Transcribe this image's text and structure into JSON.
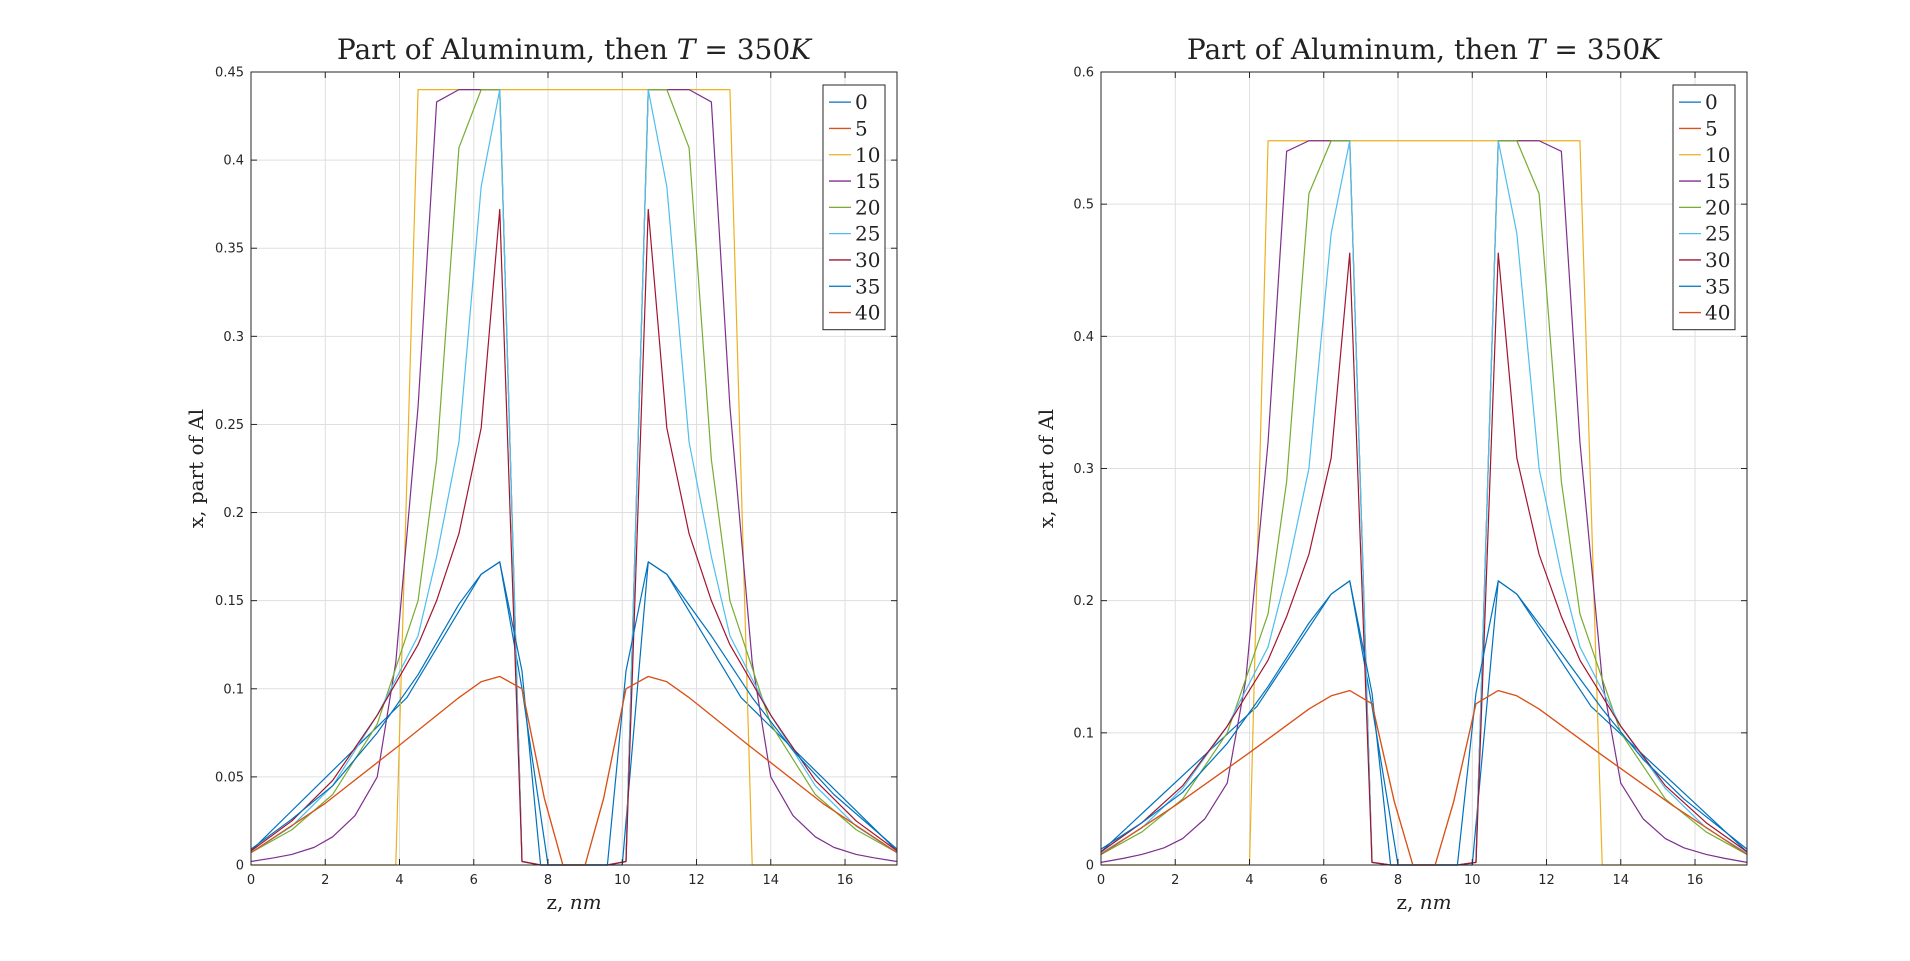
{
  "chart_data": [
    {
      "type": "line",
      "title": "Part of Aluminum, then T = 350K",
      "title_parts": {
        "text": "Part of Aluminum, then ",
        "math_T": "T",
        "math_eq": " = 350",
        "math_K": "K"
      },
      "xlabel": "z, nm",
      "xlabel_parts": {
        "text": "z, ",
        "math": "nm"
      },
      "ylabel": "x, part of Al",
      "xlim": [
        0,
        17.4
      ],
      "ylim": [
        0,
        0.45
      ],
      "xticks": [
        0,
        2,
        4,
        6,
        8,
        10,
        12,
        14,
        16
      ],
      "yticks": [
        0,
        0.05,
        0.1,
        0.15,
        0.2,
        0.25,
        0.3,
        0.35,
        0.4,
        0.45
      ],
      "ytick_labels": [
        "0",
        "0.05",
        "0.1",
        "0.15",
        "0.2",
        "0.25",
        "0.3",
        "0.35",
        "0.4",
        "0.45"
      ],
      "grid": true,
      "legend_position": "top-right",
      "series": [
        {
          "name": "0",
          "color": "#0072BD",
          "x": [
            0,
            4.2,
            6.2,
            6.7,
            7.3,
            8.0,
            10.0,
            10.7,
            11.2,
            13.2,
            17.4
          ],
          "y": [
            0.008,
            0.095,
            0.165,
            0.172,
            0.1,
            0,
            0,
            0.172,
            0.165,
            0.095,
            0.008
          ]
        },
        {
          "name": "5",
          "color": "#D95319",
          "x": [
            0,
            2.0,
            4.0,
            5.6,
            6.2,
            6.7,
            7.3,
            7.9,
            8.4,
            9.0,
            9.5,
            10.1,
            10.7,
            11.2,
            11.8,
            13.4,
            15.4,
            17.4
          ],
          "y": [
            0.007,
            0.035,
            0.068,
            0.095,
            0.104,
            0.107,
            0.1,
            0.038,
            0,
            0,
            0.038,
            0.1,
            0.107,
            0.104,
            0.095,
            0.068,
            0.035,
            0.007
          ]
        },
        {
          "name": "10",
          "color": "#EDB120",
          "x": [
            0,
            3.9,
            4.5,
            12.9,
            13.5,
            17.4
          ],
          "y": [
            0,
            0,
            0.44,
            0.44,
            0,
            0
          ]
        },
        {
          "name": "15",
          "color": "#7E2F8E",
          "x": [
            0,
            0.6,
            1.1,
            1.7,
            2.2,
            2.8,
            3.4,
            3.9,
            4.5,
            5.0,
            5.6,
            6.2,
            6.7,
            7.3,
            7.8,
            9.6,
            10.1,
            10.7,
            11.2,
            11.8,
            12.4,
            12.9,
            13.5,
            14.0,
            14.6,
            15.2,
            15.7,
            16.3,
            16.8,
            17.4
          ],
          "y": [
            0.002,
            0.004,
            0.006,
            0.01,
            0.016,
            0.028,
            0.05,
            0.115,
            0.26,
            0.433,
            0.44,
            0.44,
            0.44,
            0.002,
            0,
            0,
            0.002,
            0.44,
            0.44,
            0.44,
            0.433,
            0.26,
            0.115,
            0.05,
            0.028,
            0.016,
            0.01,
            0.006,
            0.004,
            0.002
          ]
        },
        {
          "name": "20",
          "color": "#77AC30",
          "x": [
            0,
            1.1,
            2.2,
            3.4,
            4.5,
            5.0,
            5.6,
            6.2,
            6.7,
            7.3,
            7.8,
            9.6,
            10.1,
            10.7,
            11.2,
            11.8,
            12.4,
            12.9,
            14.0,
            15.2,
            16.3,
            17.4
          ],
          "y": [
            0.007,
            0.02,
            0.04,
            0.08,
            0.15,
            0.23,
            0.407,
            0.44,
            0.44,
            0.002,
            0,
            0,
            0.002,
            0.44,
            0.44,
            0.407,
            0.23,
            0.15,
            0.08,
            0.04,
            0.02,
            0.007
          ]
        },
        {
          "name": "25",
          "color": "#4DBEEE",
          "x": [
            0,
            1.1,
            2.2,
            3.4,
            4.5,
            5.0,
            5.6,
            6.2,
            6.7,
            7.3,
            7.8,
            9.6,
            10.1,
            10.7,
            11.2,
            11.8,
            12.4,
            12.9,
            14.0,
            15.2,
            16.3,
            17.4
          ],
          "y": [
            0.007,
            0.022,
            0.045,
            0.085,
            0.13,
            0.175,
            0.24,
            0.385,
            0.44,
            0.002,
            0,
            0,
            0.002,
            0.44,
            0.385,
            0.24,
            0.175,
            0.13,
            0.085,
            0.045,
            0.022,
            0.007
          ]
        },
        {
          "name": "30",
          "color": "#A2142F",
          "x": [
            0,
            1.1,
            2.2,
            3.4,
            4.5,
            5.0,
            5.6,
            6.2,
            6.7,
            7.3,
            7.8,
            9.6,
            10.1,
            10.7,
            11.2,
            11.8,
            12.4,
            12.9,
            14.0,
            15.2,
            16.3,
            17.4
          ],
          "y": [
            0.008,
            0.025,
            0.048,
            0.085,
            0.125,
            0.15,
            0.188,
            0.248,
            0.372,
            0.002,
            0,
            0,
            0.002,
            0.372,
            0.248,
            0.188,
            0.15,
            0.125,
            0.085,
            0.048,
            0.025,
            0.008
          ]
        },
        {
          "name": "35",
          "color": "#0072BD",
          "x": [
            0,
            1.1,
            2.2,
            3.4,
            4.5,
            5.6,
            6.2,
            6.7,
            7.3,
            7.8,
            9.6,
            10.1,
            10.7,
            11.2,
            12.4,
            13.5,
            14.6,
            15.7,
            17.4
          ],
          "y": [
            0.009,
            0.026,
            0.045,
            0.075,
            0.108,
            0.148,
            0.165,
            0.172,
            0.11,
            0,
            0,
            0.11,
            0.172,
            0.165,
            0.13,
            0.095,
            0.065,
            0.04,
            0.009
          ]
        },
        {
          "name": "40",
          "color": "#D95319",
          "x": [
            0,
            2.0,
            4.0,
            5.6,
            6.2,
            6.7,
            7.3,
            7.9,
            8.4,
            9.0,
            9.5,
            10.1,
            10.7,
            11.2,
            11.8,
            13.4,
            15.4,
            17.4
          ],
          "y": [
            0.007,
            0.035,
            0.068,
            0.095,
            0.104,
            0.107,
            0.1,
            0.038,
            0,
            0,
            0.038,
            0.1,
            0.107,
            0.104,
            0.095,
            0.068,
            0.035,
            0.007
          ]
        }
      ]
    },
    {
      "type": "line",
      "title": "Part of Aluminum, then T = 350K",
      "title_parts": {
        "text": "Part of Aluminum, then ",
        "math_T": "T",
        "math_eq": " = 350",
        "math_K": "K"
      },
      "xlabel": "z, nm",
      "xlabel_parts": {
        "text": "z, ",
        "math": "nm"
      },
      "ylabel": "x, part of Al",
      "xlim": [
        0,
        17.4
      ],
      "ylim": [
        0,
        0.6
      ],
      "xticks": [
        0,
        2,
        4,
        6,
        8,
        10,
        12,
        14,
        16
      ],
      "yticks": [
        0,
        0.1,
        0.2,
        0.3,
        0.4,
        0.5,
        0.6
      ],
      "ytick_labels": [
        "0",
        "0.1",
        "0.2",
        "0.3",
        "0.4",
        "0.5",
        "0.6"
      ],
      "grid": true,
      "legend_position": "top-right",
      "series": [
        {
          "name": "0",
          "color": "#0072BD",
          "x": [
            0,
            4.2,
            6.2,
            6.7,
            7.3,
            8.0,
            10.0,
            10.7,
            11.2,
            13.2,
            17.4
          ],
          "y": [
            0.01,
            0.12,
            0.205,
            0.215,
            0.12,
            0,
            0,
            0.215,
            0.205,
            0.12,
            0.01
          ]
        },
        {
          "name": "5",
          "color": "#D95319",
          "x": [
            0,
            2.0,
            4.0,
            5.6,
            6.2,
            6.7,
            7.3,
            7.9,
            8.4,
            9.0,
            9.5,
            10.1,
            10.7,
            11.2,
            11.8,
            13.4,
            15.4,
            17.4
          ],
          "y": [
            0.008,
            0.045,
            0.085,
            0.118,
            0.128,
            0.132,
            0.122,
            0.048,
            0,
            0,
            0.048,
            0.122,
            0.132,
            0.128,
            0.118,
            0.085,
            0.045,
            0.008
          ]
        },
        {
          "name": "10",
          "color": "#EDB120",
          "x": [
            0,
            4.0,
            4.5,
            12.9,
            13.5,
            17.4
          ],
          "y": [
            0,
            0,
            0.548,
            0.548,
            0,
            0
          ]
        },
        {
          "name": "15",
          "color": "#7E2F8E",
          "x": [
            0,
            0.6,
            1.1,
            1.7,
            2.2,
            2.8,
            3.4,
            3.9,
            4.5,
            5.0,
            5.6,
            6.2,
            6.7,
            7.3,
            7.8,
            9.6,
            10.1,
            10.7,
            11.2,
            11.8,
            12.4,
            12.9,
            13.5,
            14.0,
            14.6,
            15.2,
            15.7,
            16.3,
            16.8,
            17.4
          ],
          "y": [
            0.002,
            0.005,
            0.008,
            0.013,
            0.02,
            0.035,
            0.062,
            0.14,
            0.32,
            0.54,
            0.548,
            0.548,
            0.548,
            0.002,
            0,
            0,
            0.002,
            0.548,
            0.548,
            0.548,
            0.54,
            0.32,
            0.14,
            0.062,
            0.035,
            0.02,
            0.013,
            0.008,
            0.005,
            0.002
          ]
        },
        {
          "name": "20",
          "color": "#77AC30",
          "x": [
            0,
            1.1,
            2.2,
            3.4,
            4.5,
            5.0,
            5.6,
            6.2,
            6.7,
            7.3,
            7.8,
            9.6,
            10.1,
            10.7,
            11.2,
            11.8,
            12.4,
            12.9,
            14.0,
            15.2,
            16.3,
            17.4
          ],
          "y": [
            0.008,
            0.025,
            0.05,
            0.1,
            0.19,
            0.29,
            0.508,
            0.548,
            0.548,
            0.002,
            0,
            0,
            0.002,
            0.548,
            0.548,
            0.508,
            0.29,
            0.19,
            0.1,
            0.05,
            0.025,
            0.008
          ]
        },
        {
          "name": "25",
          "color": "#4DBEEE",
          "x": [
            0,
            1.1,
            2.2,
            3.4,
            4.5,
            5.0,
            5.6,
            6.2,
            6.7,
            7.3,
            7.8,
            9.6,
            10.1,
            10.7,
            11.2,
            11.8,
            12.4,
            12.9,
            14.0,
            15.2,
            16.3,
            17.4
          ],
          "y": [
            0.009,
            0.028,
            0.058,
            0.105,
            0.165,
            0.22,
            0.3,
            0.478,
            0.548,
            0.002,
            0,
            0,
            0.002,
            0.548,
            0.478,
            0.3,
            0.22,
            0.165,
            0.105,
            0.058,
            0.028,
            0.009
          ]
        },
        {
          "name": "30",
          "color": "#A2142F",
          "x": [
            0,
            1.1,
            2.2,
            3.4,
            4.5,
            5.0,
            5.6,
            6.2,
            6.7,
            7.3,
            7.8,
            9.6,
            10.1,
            10.7,
            11.2,
            11.8,
            12.4,
            12.9,
            14.0,
            15.2,
            16.3,
            17.4
          ],
          "y": [
            0.01,
            0.032,
            0.06,
            0.105,
            0.155,
            0.188,
            0.235,
            0.308,
            0.463,
            0.002,
            0,
            0,
            0.002,
            0.463,
            0.308,
            0.235,
            0.188,
            0.155,
            0.105,
            0.06,
            0.032,
            0.01
          ]
        },
        {
          "name": "35",
          "color": "#0072BD",
          "x": [
            0,
            1.1,
            2.2,
            3.4,
            4.5,
            5.6,
            6.2,
            6.7,
            7.3,
            7.8,
            9.6,
            10.1,
            10.7,
            11.2,
            12.4,
            13.5,
            14.6,
            15.7,
            17.4
          ],
          "y": [
            0.012,
            0.032,
            0.055,
            0.092,
            0.135,
            0.183,
            0.205,
            0.215,
            0.13,
            0,
            0,
            0.13,
            0.215,
            0.205,
            0.16,
            0.118,
            0.08,
            0.05,
            0.012
          ]
        },
        {
          "name": "40",
          "color": "#D95319",
          "x": [
            0,
            2.0,
            4.0,
            5.6,
            6.2,
            6.7,
            7.3,
            7.9,
            8.4,
            9.0,
            9.5,
            10.1,
            10.7,
            11.2,
            11.8,
            13.4,
            15.4,
            17.4
          ],
          "y": [
            0.008,
            0.045,
            0.085,
            0.118,
            0.128,
            0.132,
            0.122,
            0.048,
            0,
            0,
            0.048,
            0.122,
            0.132,
            0.128,
            0.118,
            0.085,
            0.045,
            0.008
          ]
        }
      ]
    }
  ]
}
